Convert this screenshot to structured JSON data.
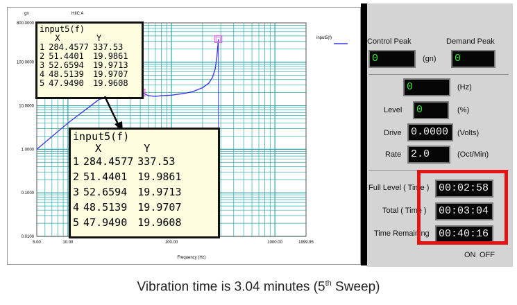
{
  "chart_data": {
    "type": "line",
    "title": "",
    "y_unit_label": "gn",
    "channel_label": "HIIC A",
    "xlabel": "Frequency (Hz)",
    "ylabel": "",
    "x_scale": "log",
    "y_scale": "log",
    "xlim": [
      5.0,
      1999.95
    ],
    "ylim": [
      0.01,
      800.0
    ],
    "x_tick_labels": [
      "5.00",
      "10.00",
      "100.00",
      "1000.00",
      "1999.95"
    ],
    "y_tick_labels": [
      "800.0000",
      "100.0000",
      "10.0000",
      "1.0000",
      "0.1000",
      "0.0100"
    ],
    "grid": true,
    "legend": "top-right",
    "series": [
      {
        "name": "input5(f)",
        "color": "#3a3ae6",
        "x": [
          5.0,
          10.0,
          20.0,
          30.0,
          40.0,
          48.0,
          51.44,
          53.0,
          60.0,
          70.0,
          80.0,
          100.0,
          130.0,
          160.0,
          200.0,
          230.0,
          250.0,
          265.0,
          275.0,
          280.0,
          284.46
        ],
        "y": [
          1.0,
          4.0,
          14.0,
          17.5,
          19.0,
          19.95,
          19.99,
          19.6,
          17.0,
          16.5,
          17.0,
          17.5,
          19.0,
          21.0,
          26.0,
          33.0,
          45.0,
          70.0,
          130.0,
          220.0,
          337.53
        ]
      }
    ],
    "markers": [
      {
        "x": 51.44,
        "y": 19.99
      },
      {
        "x": 284.46,
        "y": 337.53
      }
    ]
  },
  "data_table": {
    "title": "input5(f)",
    "headers": [
      "",
      "X",
      "Y"
    ],
    "rows": [
      [
        "1",
        "284.4577",
        "337.53"
      ],
      [
        "2",
        "51.4401",
        "19.9861"
      ],
      [
        "3",
        "52.6594",
        "19.9713"
      ],
      [
        "4",
        "48.5139",
        "19.9707"
      ],
      [
        "5",
        "47.9490",
        "19.9608"
      ]
    ]
  },
  "controls": {
    "control_peak_label": "Control Peak",
    "demand_peak_label": "Demand Peak",
    "control_peak_value": "0",
    "demand_peak_value": "0",
    "peak_unit": "(gn)",
    "freq_value": "0",
    "freq_unit": "(Hz)",
    "level_label": "Level",
    "level_value": "0",
    "level_unit": "(%)",
    "drive_label": "Drive",
    "drive_value": "0.0000",
    "drive_unit": "(Volts)",
    "rate_label": "Rate",
    "rate_value": "2.0",
    "rate_unit": "(Oct/Min)",
    "full_level_label": "Full Level ( Time )",
    "full_level_value": "00:02:58",
    "total_label": "Total ( Time )",
    "total_value": "00:03:04",
    "remaining_label": "Time Remaining",
    "remaining_value": "00:40:16",
    "on_label": "ON",
    "off_label": "OFF"
  },
  "caption": {
    "text": "Vibration time is 3.04 minutes (5",
    "sup": "th",
    "tail": " Sweep)"
  },
  "colors": {
    "grid": "#2aa7a7",
    "curve": "#3a3ae6",
    "marker": "#e060e0",
    "lcd_text": "#3ee83e",
    "highlight": "#e31414",
    "table_bg": "#fffde0"
  }
}
